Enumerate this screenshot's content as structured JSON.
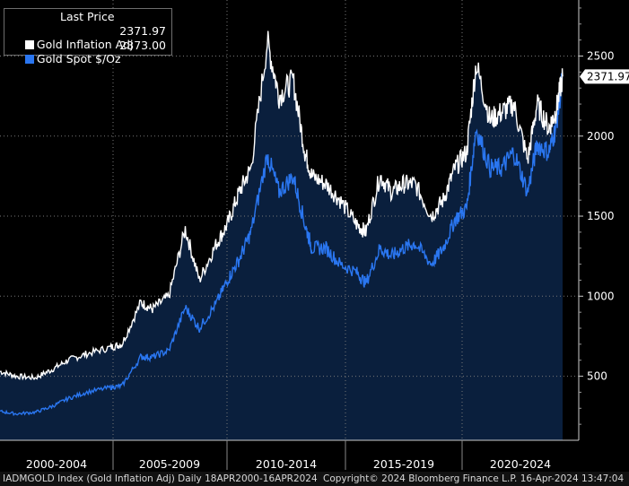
{
  "chart_data": {
    "type": "area",
    "title": "",
    "xlabel": "",
    "ylabel": "",
    "ylim": [
      100,
      2850
    ],
    "y_ticks": [
      500,
      1000,
      1500,
      2000,
      2500
    ],
    "x_tick_labels": [
      "2000-2004",
      "2005-2009",
      "2010-2014",
      "2015-2019",
      "2020-2024"
    ],
    "legend": {
      "title": "Last Price",
      "placement": "top-left"
    },
    "series": [
      {
        "name": "Gold Inflation Adj",
        "last": "2371.97",
        "color": "#ffffff",
        "x": [
          2000.3,
          2001.0,
          2001.8,
          2002.5,
          2003.2,
          2004.0,
          2005.0,
          2005.5,
          2006.3,
          2006.8,
          2007.5,
          2008.2,
          2008.8,
          2009.5,
          2010.0,
          2010.5,
          2011.0,
          2011.7,
          2012.2,
          2012.8,
          2013.3,
          2013.6,
          2014.2,
          2014.8,
          2015.5,
          2015.9,
          2016.5,
          2017.0,
          2017.5,
          2018.0,
          2018.7,
          2019.2,
          2019.7,
          2020.2,
          2020.6,
          2021.2,
          2021.7,
          2022.2,
          2022.8,
          2023.2,
          2023.7,
          2024.0,
          2024.29
        ],
        "values": [
          530,
          500,
          490,
          540,
          600,
          640,
          680,
          700,
          960,
          920,
          1000,
          1420,
          1100,
          1320,
          1450,
          1650,
          1800,
          2590,
          2250,
          2350,
          1900,
          1750,
          1700,
          1600,
          1450,
          1400,
          1750,
          1650,
          1700,
          1700,
          1500,
          1600,
          1800,
          1900,
          2450,
          2100,
          2150,
          2200,
          1850,
          2200,
          2050,
          2150,
          2372
        ]
      },
      {
        "name": "Gold Spot $/Oz",
        "last": "2373.00",
        "color": "#2a76f0",
        "x": [
          2000.3,
          2001.0,
          2001.8,
          2002.5,
          2003.2,
          2004.0,
          2005.0,
          2005.5,
          2006.3,
          2006.8,
          2007.5,
          2008.2,
          2008.8,
          2009.5,
          2010.0,
          2010.5,
          2011.0,
          2011.7,
          2012.2,
          2012.8,
          2013.3,
          2013.6,
          2014.2,
          2014.8,
          2015.5,
          2015.9,
          2016.5,
          2017.0,
          2017.5,
          2018.0,
          2018.7,
          2019.2,
          2019.7,
          2020.2,
          2020.6,
          2021.2,
          2021.7,
          2022.2,
          2022.8,
          2023.2,
          2023.7,
          2024.0,
          2024.29
        ],
        "values": [
          280,
          265,
          275,
          310,
          360,
          400,
          430,
          440,
          620,
          620,
          660,
          930,
          800,
          950,
          1100,
          1230,
          1400,
          1880,
          1650,
          1750,
          1450,
          1300,
          1300,
          1200,
          1150,
          1080,
          1300,
          1250,
          1300,
          1330,
          1200,
          1300,
          1480,
          1550,
          2050,
          1800,
          1800,
          1900,
          1650,
          1950,
          1900,
          2050,
          2373
        ]
      }
    ],
    "last_price_label": "2371.97"
  },
  "footer": {
    "left": "IADMGOLD Index (Gold Inflation Adj)  Daily 18APR2000-16APR2024",
    "right": "Copyright© 2024 Bloomberg Finance L.P.    16-Apr-2024 13:47:04"
  },
  "colors": {
    "background": "#000000",
    "fill": "#0a1f3d",
    "grid": "#777777",
    "axis_text": "#ffffff",
    "last_price_bg": "#ffffff"
  }
}
